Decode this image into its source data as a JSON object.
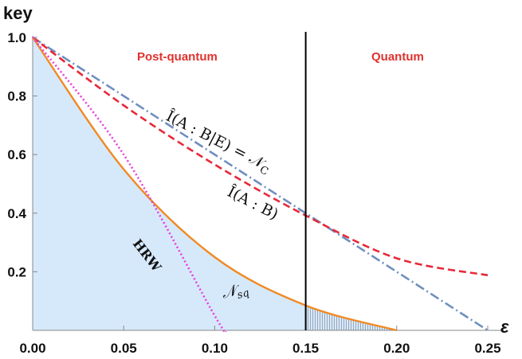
{
  "chart_data": {
    "type": "line",
    "xlabel": "ε",
    "ylabel": "key",
    "xlim": [
      0,
      0.25
    ],
    "ylim": [
      0,
      1.0
    ],
    "x_ticks": [
      "0.00",
      "0.05",
      "0.10",
      "0.15",
      "0.20",
      "0.25"
    ],
    "y_ticks": [
      "0.2",
      "0.4",
      "0.6",
      "0.8",
      "1.0"
    ],
    "regions": [
      {
        "label": "Post-quantum",
        "x_range": [
          0,
          0.15
        ]
      },
      {
        "label": "Quantum",
        "x_range": [
          0.15,
          0.25
        ]
      }
    ],
    "divider_x": 0.15,
    "series": [
      {
        "name": "Î(A : B|E) = N_C",
        "style": "dash-dot",
        "color": "#6f8fbf",
        "x": [
          0,
          0.25
        ],
        "y": [
          1.0,
          0.0
        ]
      },
      {
        "name": "Î(A : B)",
        "style": "dashed",
        "color": "#e8283a",
        "x": [
          0,
          0.05,
          0.1,
          0.15,
          0.2,
          0.25
        ],
        "y": [
          1.0,
          0.768,
          0.566,
          0.392,
          0.246,
          0.188
        ]
      },
      {
        "name": "N_sq",
        "style": "solid",
        "color": "#f08a24",
        "x": [
          0,
          0.05,
          0.1,
          0.15,
          0.2
        ],
        "y": [
          1.0,
          0.55,
          0.25,
          0.085,
          0.0
        ]
      },
      {
        "name": "HRW",
        "style": "dotted",
        "color": "#e83ee0",
        "x": [
          0,
          0.05,
          0.1,
          0.106
        ],
        "y": [
          1.0,
          0.6,
          0.05,
          0.0
        ]
      }
    ],
    "curve_labels": {
      "nc": "Î(A : B|E) = 𝒩",
      "nc_sub": "C",
      "iab": "Î(A : B)",
      "nsq": "𝒩",
      "nsq_sub": "sq",
      "hrw": "HRW"
    },
    "fill_color": "#d6e9fb"
  }
}
